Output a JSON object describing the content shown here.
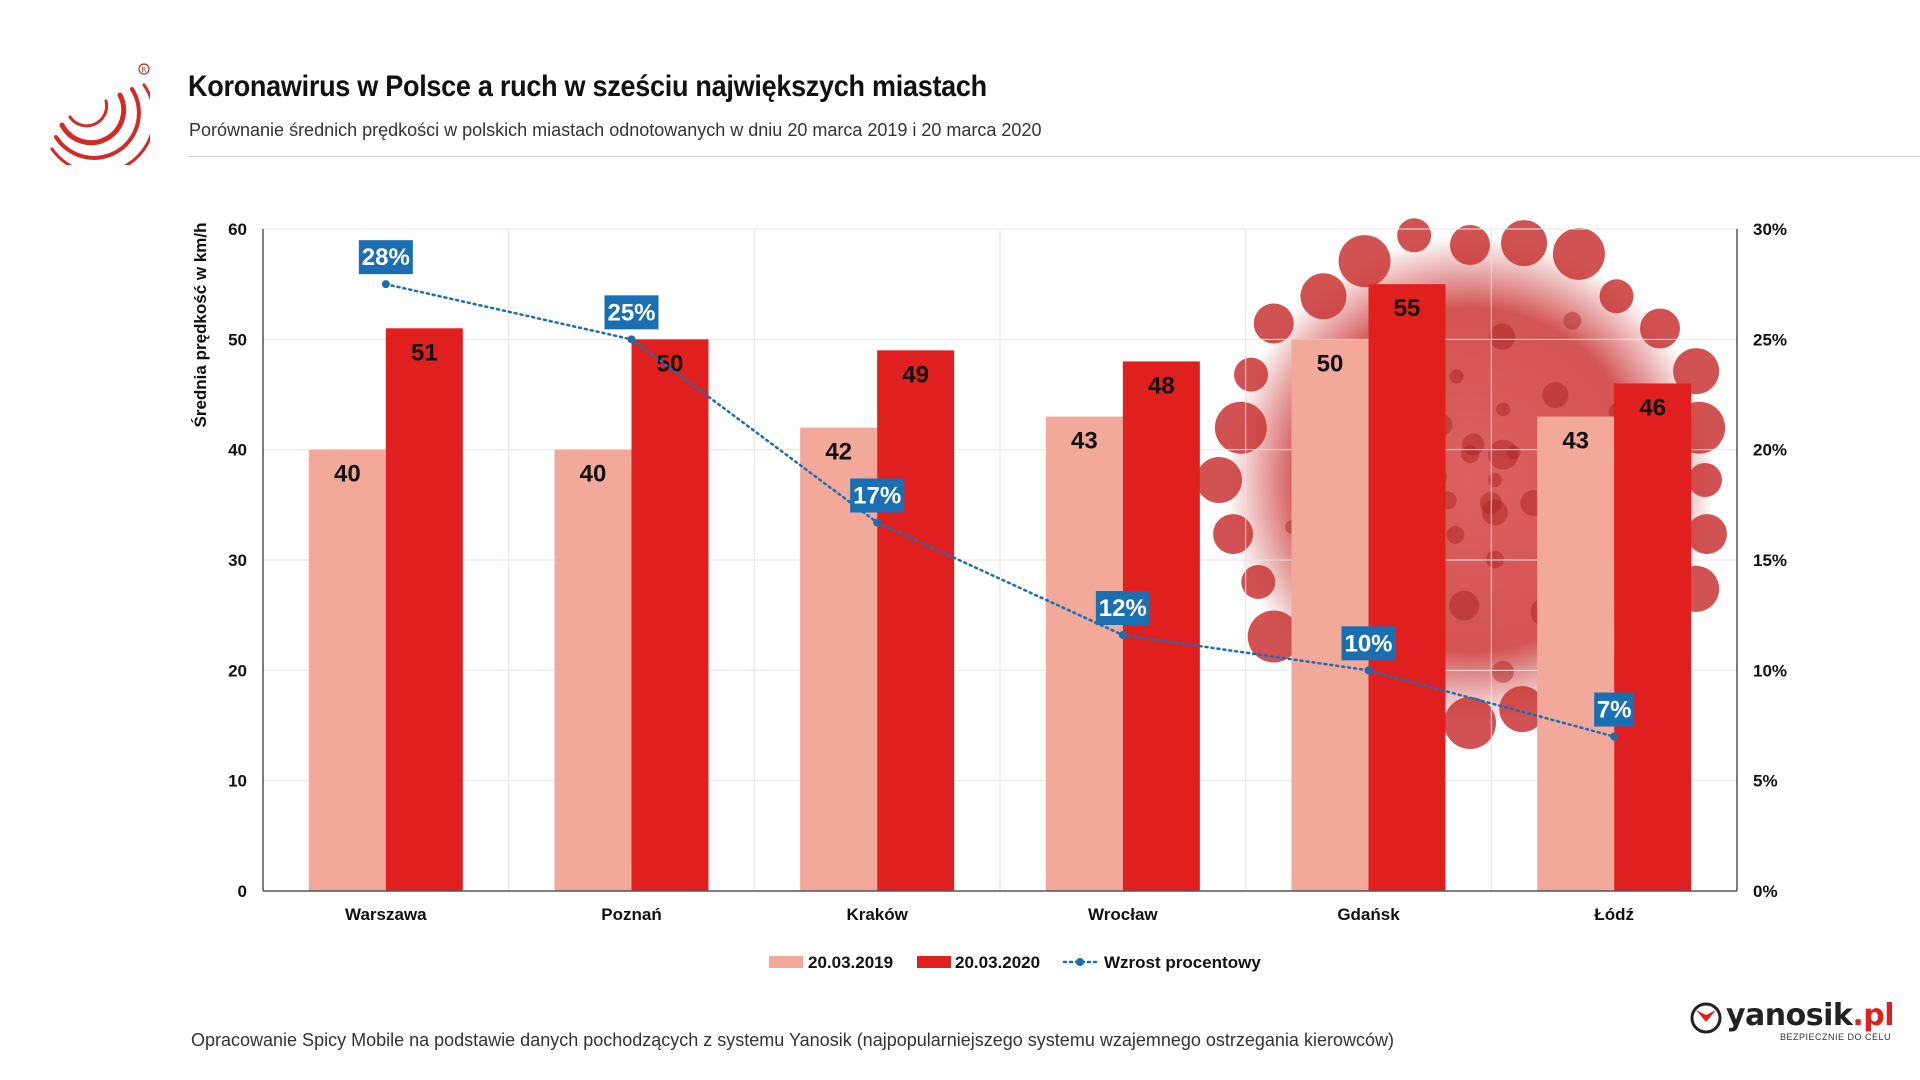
{
  "header": {
    "title": "Koronawirus w Polsce a ruch w sześciu największych miastach",
    "subtitle": "Porównanie średnich prędkości w polskich miastach odnotowanych w dniu 20 marca 2019 i 20 marca 2020"
  },
  "footer": {
    "source": "Opracowanie Spicy Mobile na podstawie danych pochodzących z systemu Yanosik (najpopularniejszego systemu wzajemnego ostrzegania kierowców)"
  },
  "brand": {
    "name": "yanosik",
    "suffix": ".pl",
    "tagline": "BEZPIECZNIE DO CELU",
    "icon": "yanosik-logo-icon"
  },
  "logo_icon": "spicy-mobile-logo-icon",
  "colors": {
    "series_2019": "#f2a99a",
    "series_2020": "#e0201f",
    "line": "#1a6fb3",
    "label_box": "#1a6fb3"
  },
  "chart_data": {
    "type": "bar",
    "title": "Koronawirus w Polsce a ruch w sześciu największych miastach",
    "ylabel": "Średnia prędkość w km/h",
    "xlabel": "",
    "ylim": [
      0,
      60
    ],
    "yticks": [
      "0",
      "10",
      "20",
      "30",
      "40",
      "50",
      "60"
    ],
    "y2lim": [
      0,
      30
    ],
    "y2ticks": [
      "0%",
      "5%",
      "10%",
      "15%",
      "20%",
      "25%",
      "30%"
    ],
    "grid": true,
    "legend_position": "bottom-center",
    "categories": [
      "Warszawa",
      "Poznań",
      "Kraków",
      "Wrocław",
      "Gdańsk",
      "Łódź"
    ],
    "series": [
      {
        "name": "20.03.2019",
        "type": "bar",
        "values": [
          40,
          40,
          42,
          43,
          50,
          43
        ]
      },
      {
        "name": "20.03.2020",
        "type": "bar",
        "values": [
          51,
          50,
          49,
          48,
          55,
          46
        ]
      },
      {
        "name": "Wzrost procentowy",
        "type": "line",
        "axis": "secondary",
        "values": [
          27.5,
          25,
          16.7,
          11.6,
          10,
          7
        ],
        "labels": [
          "28%",
          "25%",
          "17%",
          "12%",
          "10%",
          "7%"
        ]
      }
    ]
  }
}
